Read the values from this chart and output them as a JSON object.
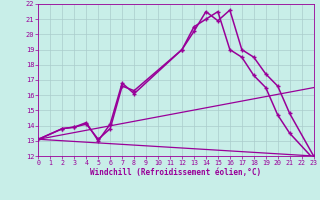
{
  "xlabel": "Windchill (Refroidissement éolien,°C)",
  "background_color": "#c8eee8",
  "line_color": "#990099",
  "xlim": [
    0,
    23
  ],
  "ylim": [
    12,
    22
  ],
  "xticks": [
    0,
    1,
    2,
    3,
    4,
    5,
    6,
    7,
    8,
    9,
    10,
    11,
    12,
    13,
    14,
    15,
    16,
    17,
    18,
    19,
    20,
    21,
    22,
    23
  ],
  "yticks": [
    12,
    13,
    14,
    15,
    16,
    17,
    18,
    19,
    20,
    21,
    22
  ],
  "grid_color": "#aacccc",
  "series": [
    {
      "x": [
        0,
        2,
        3,
        4,
        5,
        6,
        7,
        8,
        12,
        13,
        14,
        15,
        16,
        17,
        18,
        19,
        20,
        21,
        23
      ],
      "y": [
        13.1,
        13.8,
        13.9,
        14.1,
        13.1,
        13.8,
        16.6,
        16.3,
        19.0,
        20.5,
        21.0,
        21.5,
        19.0,
        18.5,
        17.3,
        16.5,
        14.7,
        13.5,
        11.8
      ],
      "marker": "+",
      "linewidth": 1.1
    },
    {
      "x": [
        0,
        2,
        3,
        4,
        5,
        6,
        7,
        8,
        12,
        13,
        14,
        15,
        16,
        17,
        18,
        19,
        20,
        21,
        23
      ],
      "y": [
        13.1,
        13.8,
        13.9,
        14.2,
        13.0,
        14.1,
        16.8,
        16.1,
        19.0,
        20.2,
        21.5,
        20.9,
        21.6,
        19.0,
        18.5,
        17.4,
        16.6,
        14.8,
        12.0
      ],
      "marker": "+",
      "linewidth": 1.1
    },
    {
      "x": [
        0,
        23
      ],
      "y": [
        13.1,
        16.5
      ],
      "marker": null,
      "linewidth": 0.9
    },
    {
      "x": [
        0,
        23
      ],
      "y": [
        13.1,
        12.0
      ],
      "marker": null,
      "linewidth": 0.9
    }
  ]
}
